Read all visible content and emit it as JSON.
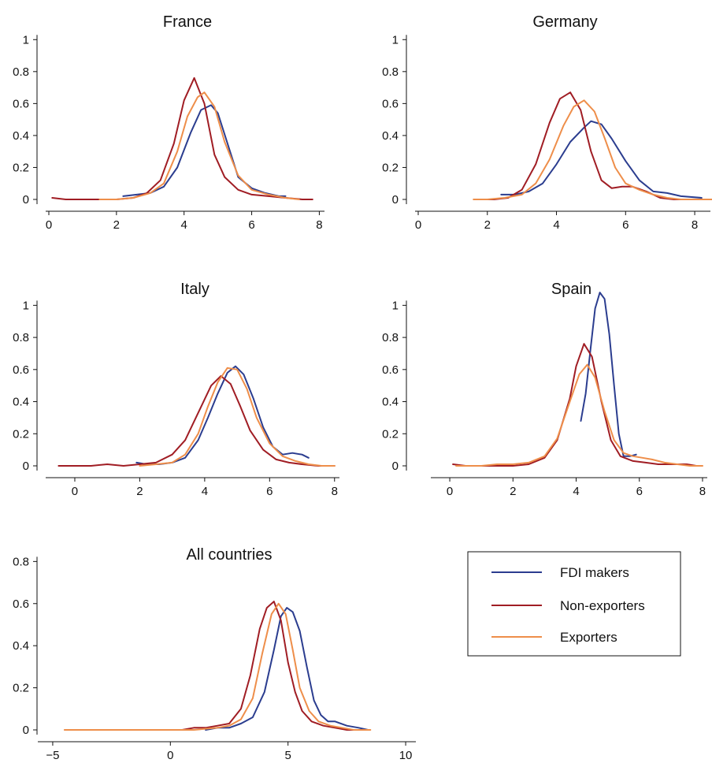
{
  "chart_data": [
    {
      "type": "line",
      "title": "France",
      "xlim": [
        0,
        8.2
      ],
      "ylim": [
        0,
        1.1
      ],
      "x_ticks": [
        0,
        2,
        4,
        6,
        8
      ],
      "y_ticks": [
        0,
        0.2,
        0.4,
        0.6,
        0.8,
        1
      ],
      "series": [
        {
          "name": "FDI makers",
          "color": "#2b3d8f",
          "x": [
            2.2,
            2.6,
            3.0,
            3.4,
            3.8,
            4.2,
            4.5,
            4.8,
            5.0,
            5.3,
            5.6,
            6.0,
            6.4,
            6.8,
            7.0
          ],
          "y": [
            0.02,
            0.03,
            0.04,
            0.08,
            0.2,
            0.42,
            0.56,
            0.59,
            0.54,
            0.34,
            0.14,
            0.07,
            0.04,
            0.02,
            0.02
          ]
        },
        {
          "name": "Non-exporters",
          "color": "#a01d24",
          "x": [
            0.1,
            0.5,
            1.0,
            1.5,
            2.0,
            2.5,
            2.9,
            3.3,
            3.7,
            4.0,
            4.3,
            4.6,
            4.9,
            5.2,
            5.6,
            6.0,
            6.5,
            7.0,
            7.5,
            7.8
          ],
          "y": [
            0.01,
            0.0,
            0.0,
            0.0,
            0.0,
            0.01,
            0.04,
            0.12,
            0.35,
            0.62,
            0.76,
            0.6,
            0.28,
            0.14,
            0.06,
            0.03,
            0.02,
            0.01,
            0.0,
            0.0
          ]
        },
        {
          "name": "Exporters",
          "color": "#ee8e4a",
          "x": [
            1.5,
            2.0,
            2.5,
            3.0,
            3.4,
            3.8,
            4.1,
            4.4,
            4.6,
            4.9,
            5.2,
            5.6,
            6.0,
            6.5,
            7.0,
            7.4
          ],
          "y": [
            0.0,
            0.0,
            0.01,
            0.04,
            0.1,
            0.3,
            0.52,
            0.64,
            0.67,
            0.58,
            0.36,
            0.15,
            0.06,
            0.03,
            0.01,
            0.0
          ]
        }
      ]
    },
    {
      "type": "line",
      "title": "Germany",
      "xlim": [
        0,
        8.5
      ],
      "ylim": [
        0,
        1.1
      ],
      "x_ticks": [
        0,
        2,
        4,
        6,
        8
      ],
      "y_ticks": [
        0,
        0.2,
        0.4,
        0.6,
        0.8,
        1
      ],
      "series": [
        {
          "name": "FDI makers",
          "color": "#2b3d8f",
          "x": [
            2.4,
            2.8,
            3.2,
            3.6,
            4.0,
            4.4,
            4.8,
            5.0,
            5.3,
            5.6,
            6.0,
            6.4,
            6.8,
            7.2,
            7.6,
            8.2
          ],
          "y": [
            0.03,
            0.03,
            0.05,
            0.1,
            0.22,
            0.36,
            0.45,
            0.49,
            0.47,
            0.38,
            0.24,
            0.12,
            0.05,
            0.04,
            0.02,
            0.01
          ]
        },
        {
          "name": "Non-exporters",
          "color": "#a01d24",
          "x": [
            1.8,
            2.2,
            2.6,
            3.0,
            3.4,
            3.8,
            4.1,
            4.4,
            4.7,
            5.0,
            5.3,
            5.6,
            5.9,
            6.2,
            6.6,
            7.0,
            7.4,
            7.8
          ],
          "y": [
            0.0,
            0.0,
            0.01,
            0.06,
            0.22,
            0.48,
            0.63,
            0.67,
            0.56,
            0.3,
            0.12,
            0.07,
            0.08,
            0.08,
            0.05,
            0.01,
            0.0,
            0.0
          ]
        },
        {
          "name": "Exporters",
          "color": "#ee8e4a",
          "x": [
            1.6,
            2.0,
            2.5,
            3.0,
            3.4,
            3.8,
            4.2,
            4.5,
            4.8,
            5.1,
            5.4,
            5.7,
            6.0,
            6.4,
            6.8,
            7.2,
            7.6,
            8.0,
            8.5
          ],
          "y": [
            0.0,
            0.0,
            0.01,
            0.03,
            0.1,
            0.25,
            0.46,
            0.58,
            0.62,
            0.55,
            0.38,
            0.2,
            0.1,
            0.06,
            0.03,
            0.01,
            0.0,
            0.0,
            0.0
          ]
        }
      ]
    },
    {
      "type": "line",
      "title": "Italy",
      "xlim": [
        -0.8,
        8.2
      ],
      "ylim": [
        0,
        1.1
      ],
      "x_ticks": [
        0,
        2,
        4,
        6,
        8
      ],
      "y_ticks": [
        0,
        0.2,
        0.4,
        0.6,
        0.8,
        1
      ],
      "series": [
        {
          "name": "FDI makers",
          "color": "#2b3d8f",
          "x": [
            1.9,
            2.2,
            2.6,
            3.0,
            3.4,
            3.8,
            4.1,
            4.4,
            4.7,
            4.95,
            5.2,
            5.5,
            5.8,
            6.1,
            6.4,
            6.7,
            7.0,
            7.2
          ],
          "y": [
            0.02,
            0.01,
            0.01,
            0.02,
            0.05,
            0.16,
            0.3,
            0.45,
            0.58,
            0.62,
            0.57,
            0.42,
            0.24,
            0.12,
            0.07,
            0.08,
            0.07,
            0.05
          ]
        },
        {
          "name": "Non-exporters",
          "color": "#a01d24",
          "x": [
            -0.5,
            0.0,
            0.5,
            1.0,
            1.5,
            2.0,
            2.5,
            3.0,
            3.4,
            3.8,
            4.2,
            4.5,
            4.8,
            5.1,
            5.4,
            5.8,
            6.2,
            6.6,
            7.0,
            7.5,
            8.0
          ],
          "y": [
            0.0,
            0.0,
            0.0,
            0.01,
            0.0,
            0.01,
            0.02,
            0.07,
            0.16,
            0.33,
            0.5,
            0.56,
            0.51,
            0.37,
            0.22,
            0.1,
            0.04,
            0.02,
            0.01,
            0.0,
            0.0
          ]
        },
        {
          "name": "Exporters",
          "color": "#ee8e4a",
          "x": [
            2.0,
            2.5,
            3.0,
            3.4,
            3.8,
            4.1,
            4.4,
            4.7,
            5.0,
            5.3,
            5.6,
            6.0,
            6.4,
            6.8,
            7.2,
            7.6,
            8.0
          ],
          "y": [
            0.0,
            0.01,
            0.02,
            0.07,
            0.2,
            0.37,
            0.52,
            0.61,
            0.6,
            0.48,
            0.3,
            0.14,
            0.06,
            0.03,
            0.01,
            0.0,
            0.0
          ]
        }
      ]
    },
    {
      "type": "line",
      "title": "Spain",
      "xlim": [
        -0.5,
        8.2
      ],
      "ylim": [
        0,
        1.1
      ],
      "x_ticks": [
        0,
        2,
        4,
        6,
        8
      ],
      "y_ticks": [
        0,
        0.2,
        0.4,
        0.6,
        0.8,
        1
      ],
      "series": [
        {
          "name": "FDI makers",
          "color": "#2b3d8f",
          "x": [
            4.15,
            4.3,
            4.45,
            4.6,
            4.75,
            4.9,
            5.05,
            5.2,
            5.35,
            5.5,
            5.7,
            5.9
          ],
          "y": [
            0.28,
            0.45,
            0.72,
            0.98,
            1.08,
            1.04,
            0.82,
            0.5,
            0.2,
            0.06,
            0.06,
            0.07
          ]
        },
        {
          "name": "Non-exporters",
          "color": "#a01d24",
          "x": [
            0.1,
            0.5,
            1.0,
            1.5,
            2.0,
            2.5,
            3.0,
            3.4,
            3.8,
            4.0,
            4.25,
            4.5,
            4.8,
            5.1,
            5.4,
            5.8,
            6.2,
            6.6,
            7.0,
            7.5,
            7.8
          ],
          "y": [
            0.01,
            0.0,
            0.0,
            0.0,
            0.0,
            0.01,
            0.05,
            0.16,
            0.42,
            0.62,
            0.76,
            0.68,
            0.4,
            0.16,
            0.06,
            0.03,
            0.02,
            0.01,
            0.01,
            0.01,
            0.0
          ]
        },
        {
          "name": "Exporters",
          "color": "#ee8e4a",
          "x": [
            0.2,
            0.6,
            1.0,
            1.5,
            2.0,
            2.5,
            3.0,
            3.4,
            3.8,
            4.1,
            4.35,
            4.6,
            4.9,
            5.2,
            5.5,
            5.8,
            6.1,
            6.4,
            6.8,
            7.2,
            7.6,
            8.0
          ],
          "y": [
            0.0,
            0.0,
            0.0,
            0.01,
            0.01,
            0.02,
            0.06,
            0.17,
            0.4,
            0.57,
            0.63,
            0.55,
            0.34,
            0.16,
            0.08,
            0.06,
            0.05,
            0.04,
            0.02,
            0.01,
            0.0,
            0.0
          ]
        }
      ]
    },
    {
      "type": "line",
      "title": "All countries",
      "xlim": [
        -5.5,
        10.5
      ],
      "ylim": [
        0,
        0.85
      ],
      "x_ticks": [
        -5,
        0,
        5,
        10
      ],
      "y_ticks": [
        0,
        0.2,
        0.4,
        0.6,
        0.8
      ],
      "series": [
        {
          "name": "FDI makers",
          "color": "#2b3d8f",
          "x": [
            1.5,
            2.0,
            2.5,
            3.0,
            3.5,
            4.0,
            4.4,
            4.7,
            4.95,
            5.2,
            5.5,
            5.8,
            6.1,
            6.4,
            6.7,
            7.0,
            7.5,
            8.0,
            8.4
          ],
          "y": [
            0.0,
            0.01,
            0.01,
            0.03,
            0.06,
            0.18,
            0.38,
            0.54,
            0.58,
            0.56,
            0.47,
            0.3,
            0.14,
            0.07,
            0.04,
            0.04,
            0.02,
            0.01,
            0.0
          ]
        },
        {
          "name": "Non-exporters",
          "color": "#a01d24",
          "x": [
            -0.5,
            0.0,
            0.5,
            1.0,
            1.5,
            2.0,
            2.5,
            3.0,
            3.4,
            3.8,
            4.1,
            4.4,
            4.7,
            5.0,
            5.3,
            5.6,
            6.0,
            6.5,
            7.0,
            7.5,
            8.0
          ],
          "y": [
            0.0,
            0.0,
            0.0,
            0.01,
            0.01,
            0.02,
            0.03,
            0.1,
            0.26,
            0.48,
            0.58,
            0.61,
            0.52,
            0.32,
            0.18,
            0.09,
            0.04,
            0.02,
            0.01,
            0.0,
            0.0
          ]
        },
        {
          "name": "Exporters",
          "color": "#ee8e4a",
          "x": [
            -4.5,
            -3.0,
            -1.5,
            0.0,
            1.0,
            2.0,
            2.5,
            3.0,
            3.5,
            3.9,
            4.3,
            4.6,
            4.9,
            5.2,
            5.5,
            5.9,
            6.3,
            6.8,
            7.3,
            7.8,
            8.5
          ],
          "y": [
            0.0,
            0.0,
            0.0,
            0.0,
            0.0,
            0.01,
            0.02,
            0.05,
            0.15,
            0.36,
            0.55,
            0.6,
            0.55,
            0.38,
            0.2,
            0.09,
            0.04,
            0.02,
            0.01,
            0.0,
            0.0
          ]
        }
      ]
    }
  ],
  "legend": {
    "placement": "bottom-right",
    "items": [
      {
        "label": "FDI makers",
        "color": "#2b3d8f"
      },
      {
        "label": "Non-exporters",
        "color": "#a01d24"
      },
      {
        "label": "Exporters",
        "color": "#ee8e4a"
      }
    ]
  }
}
